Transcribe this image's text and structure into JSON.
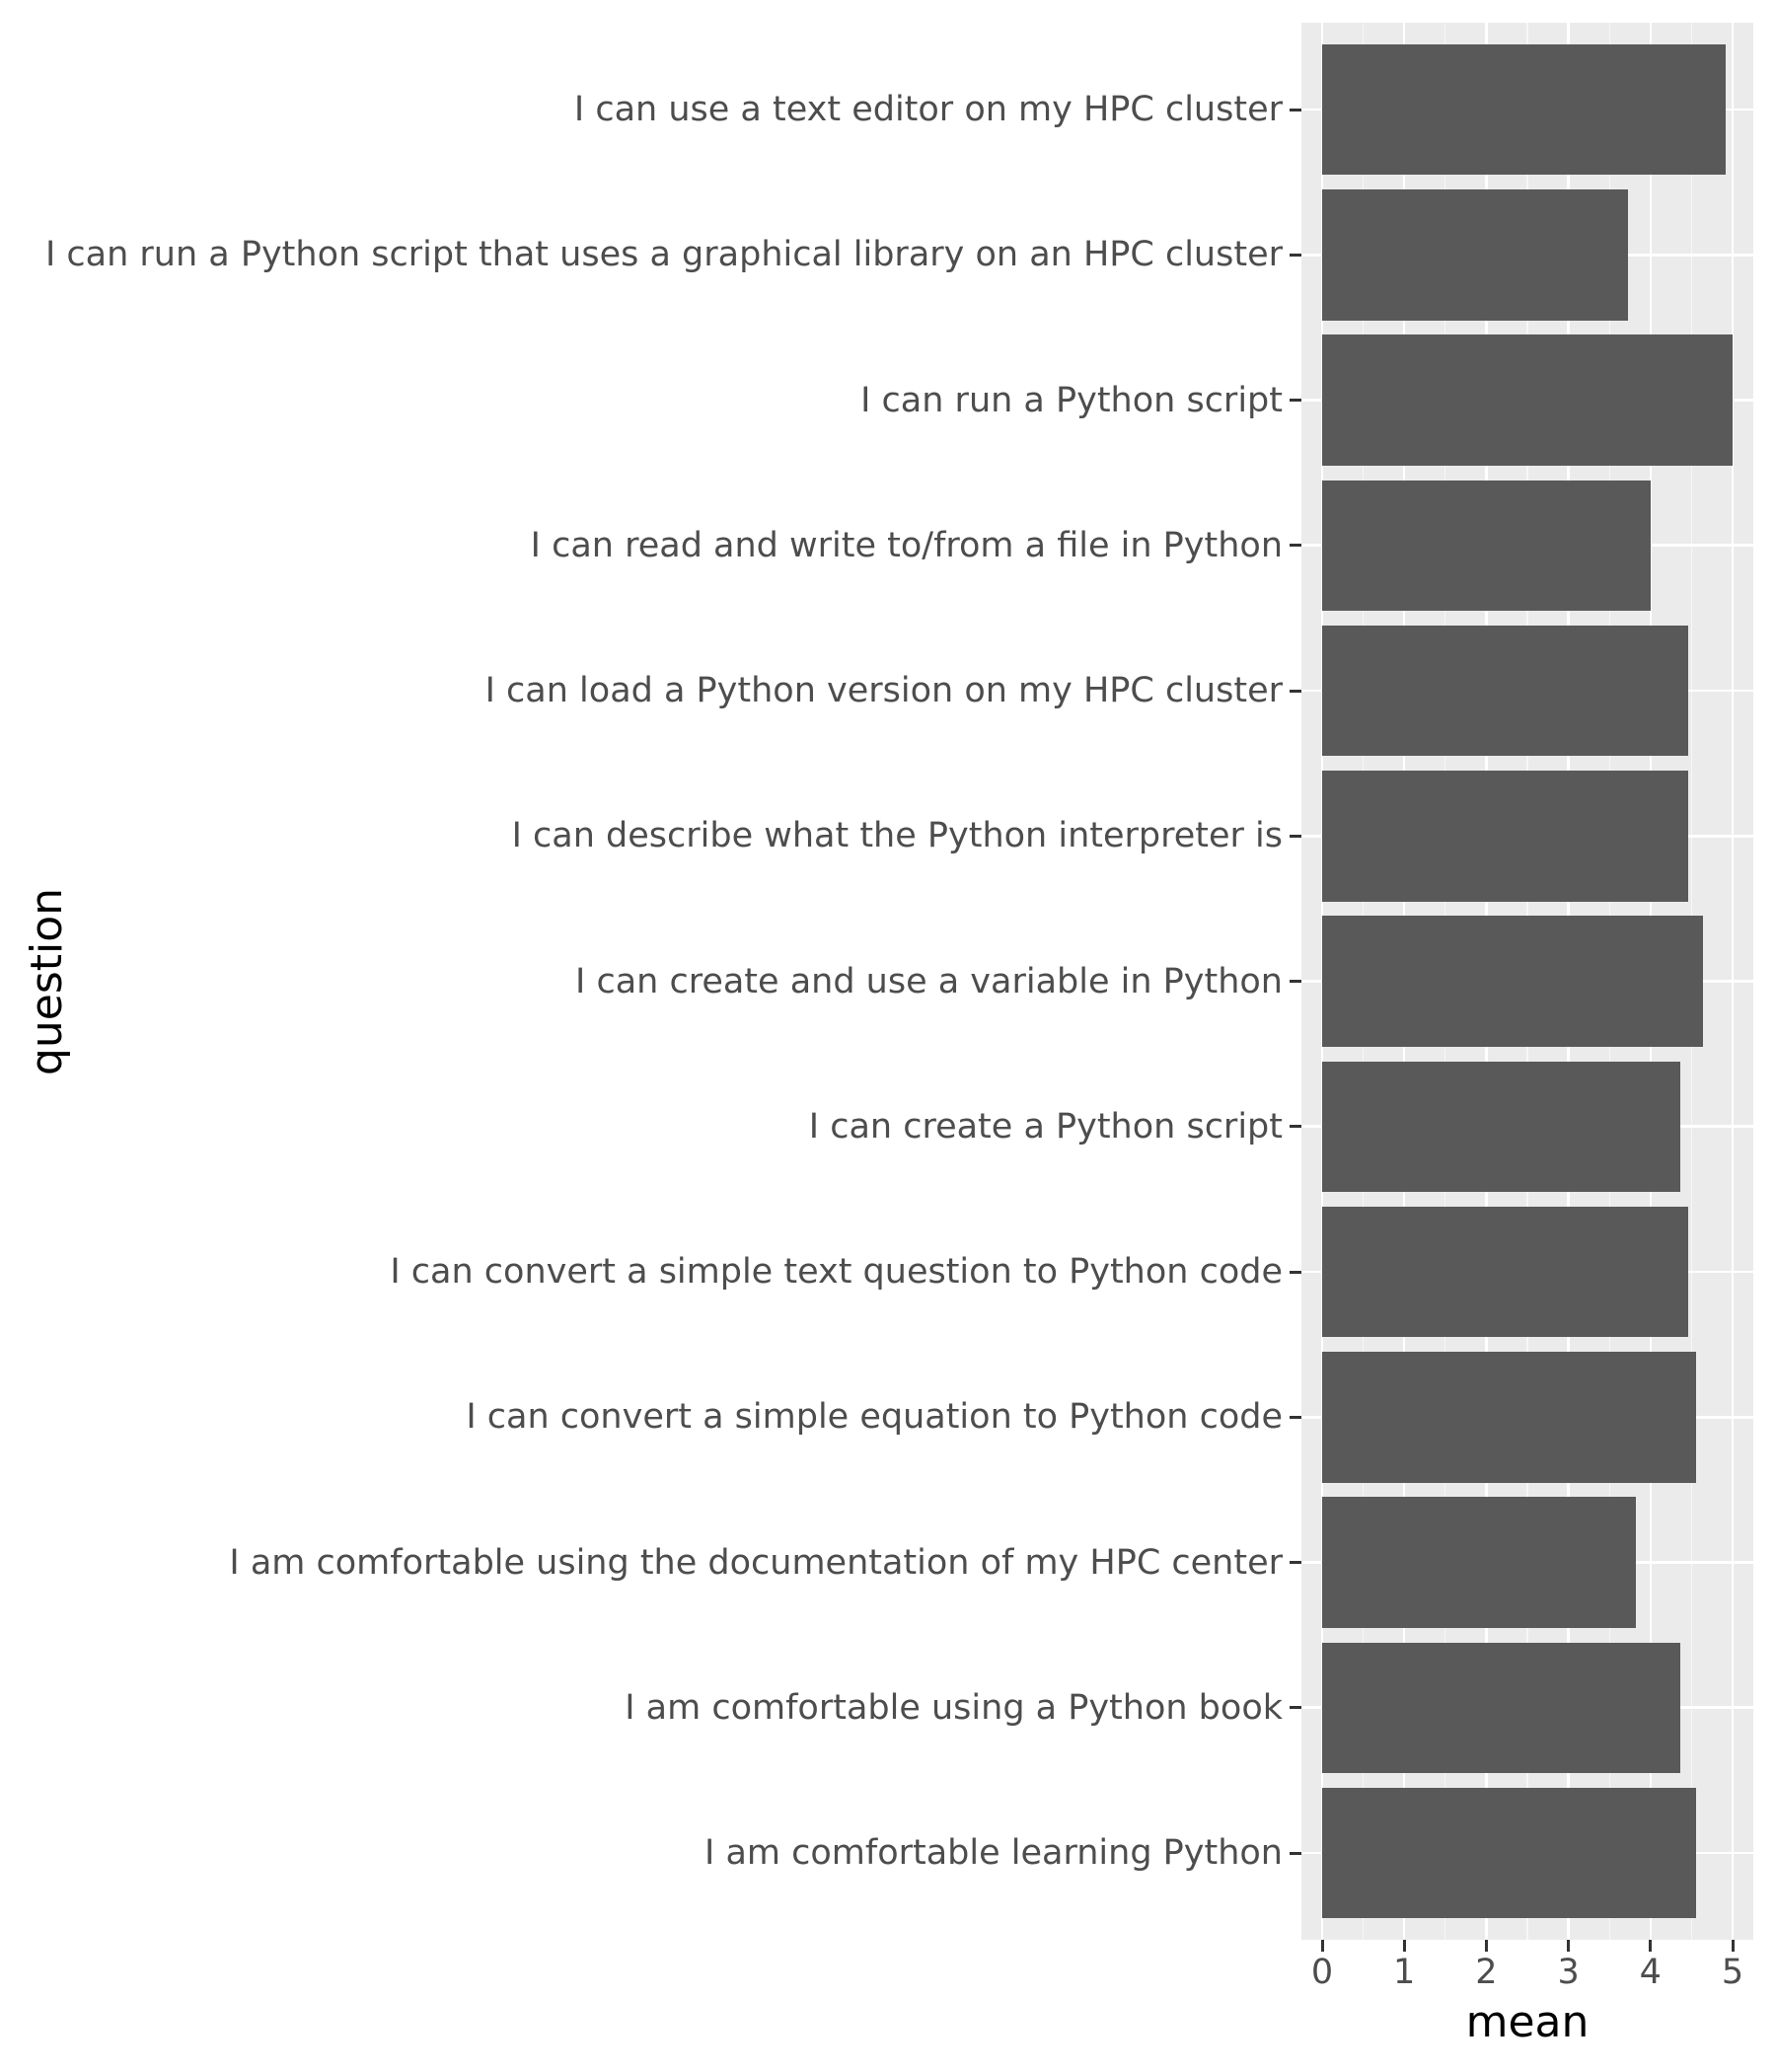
{
  "chart_data": {
    "type": "bar",
    "orientation": "horizontal",
    "title": "",
    "xlabel": "mean",
    "ylabel": "question",
    "xlim": [
      0,
      5
    ],
    "x_ticks": [
      "0",
      "1",
      "2",
      "3",
      "4",
      "5"
    ],
    "grid": true,
    "legend": null,
    "bar_color": "#595959",
    "panel_background": "#EBEBEB",
    "categories": [
      "I can use a text editor on my HPC cluster",
      "I can run a Python script that uses a graphical library on an HPC cluster",
      "I can run a Python script",
      "I can read and write to/from a file in Python",
      "I can load a Python version on my HPC cluster",
      "I can describe what the Python interpreter is",
      "I can create and use a variable in Python",
      "I can create a Python script",
      "I can convert a simple text question to Python code",
      "I can convert a simple equation to Python code",
      "I am comfortable using the documentation of my HPC center",
      "I am comfortable using a Python book",
      "I am comfortable learning Python"
    ],
    "values": [
      4.92,
      3.73,
      5.0,
      4.0,
      4.46,
      4.46,
      4.64,
      4.36,
      4.46,
      4.55,
      3.82,
      4.36,
      4.55
    ]
  }
}
